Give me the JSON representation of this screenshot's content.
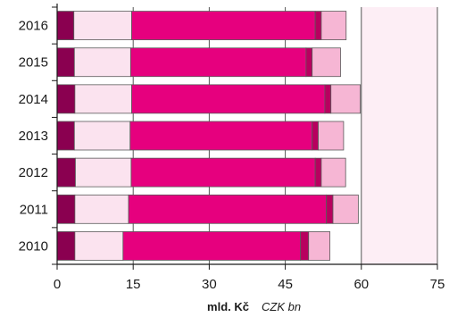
{
  "chart_data": {
    "type": "bar",
    "orientation": "horizontal",
    "stacked": true,
    "categories": [
      "2016",
      "2015",
      "2014",
      "2013",
      "2012",
      "2011",
      "2010"
    ],
    "series": [
      {
        "color": "#8a0050",
        "values": [
          3.3,
          3.4,
          3.5,
          3.4,
          3.6,
          3.5,
          3.5
        ]
      },
      {
        "color": "#fbe3ef",
        "values": [
          11.4,
          11.1,
          11.2,
          11.0,
          11.0,
          10.6,
          9.5
        ]
      },
      {
        "color": "#e6007e",
        "values": [
          36.2,
          34.6,
          38.1,
          35.9,
          36.3,
          39.0,
          35.0
        ]
      },
      {
        "color": "#b8005f",
        "values": [
          1.2,
          1.2,
          1.2,
          1.2,
          1.2,
          1.3,
          1.6
        ]
      },
      {
        "color": "#f6b6d4",
        "values": [
          4.9,
          5.6,
          5.8,
          5.0,
          4.8,
          5.0,
          4.2
        ]
      }
    ],
    "xlim": [
      0,
      75
    ],
    "xticks": [
      0,
      15,
      30,
      45,
      60,
      75
    ],
    "xtick_labels": [
      "0",
      "15",
      "30",
      "45",
      "60",
      "75"
    ],
    "highlight_region": {
      "from": 60,
      "to": 75,
      "color": "#fdeef5"
    },
    "units_cz": "mld. Kč",
    "units_en": "CZK bn"
  }
}
